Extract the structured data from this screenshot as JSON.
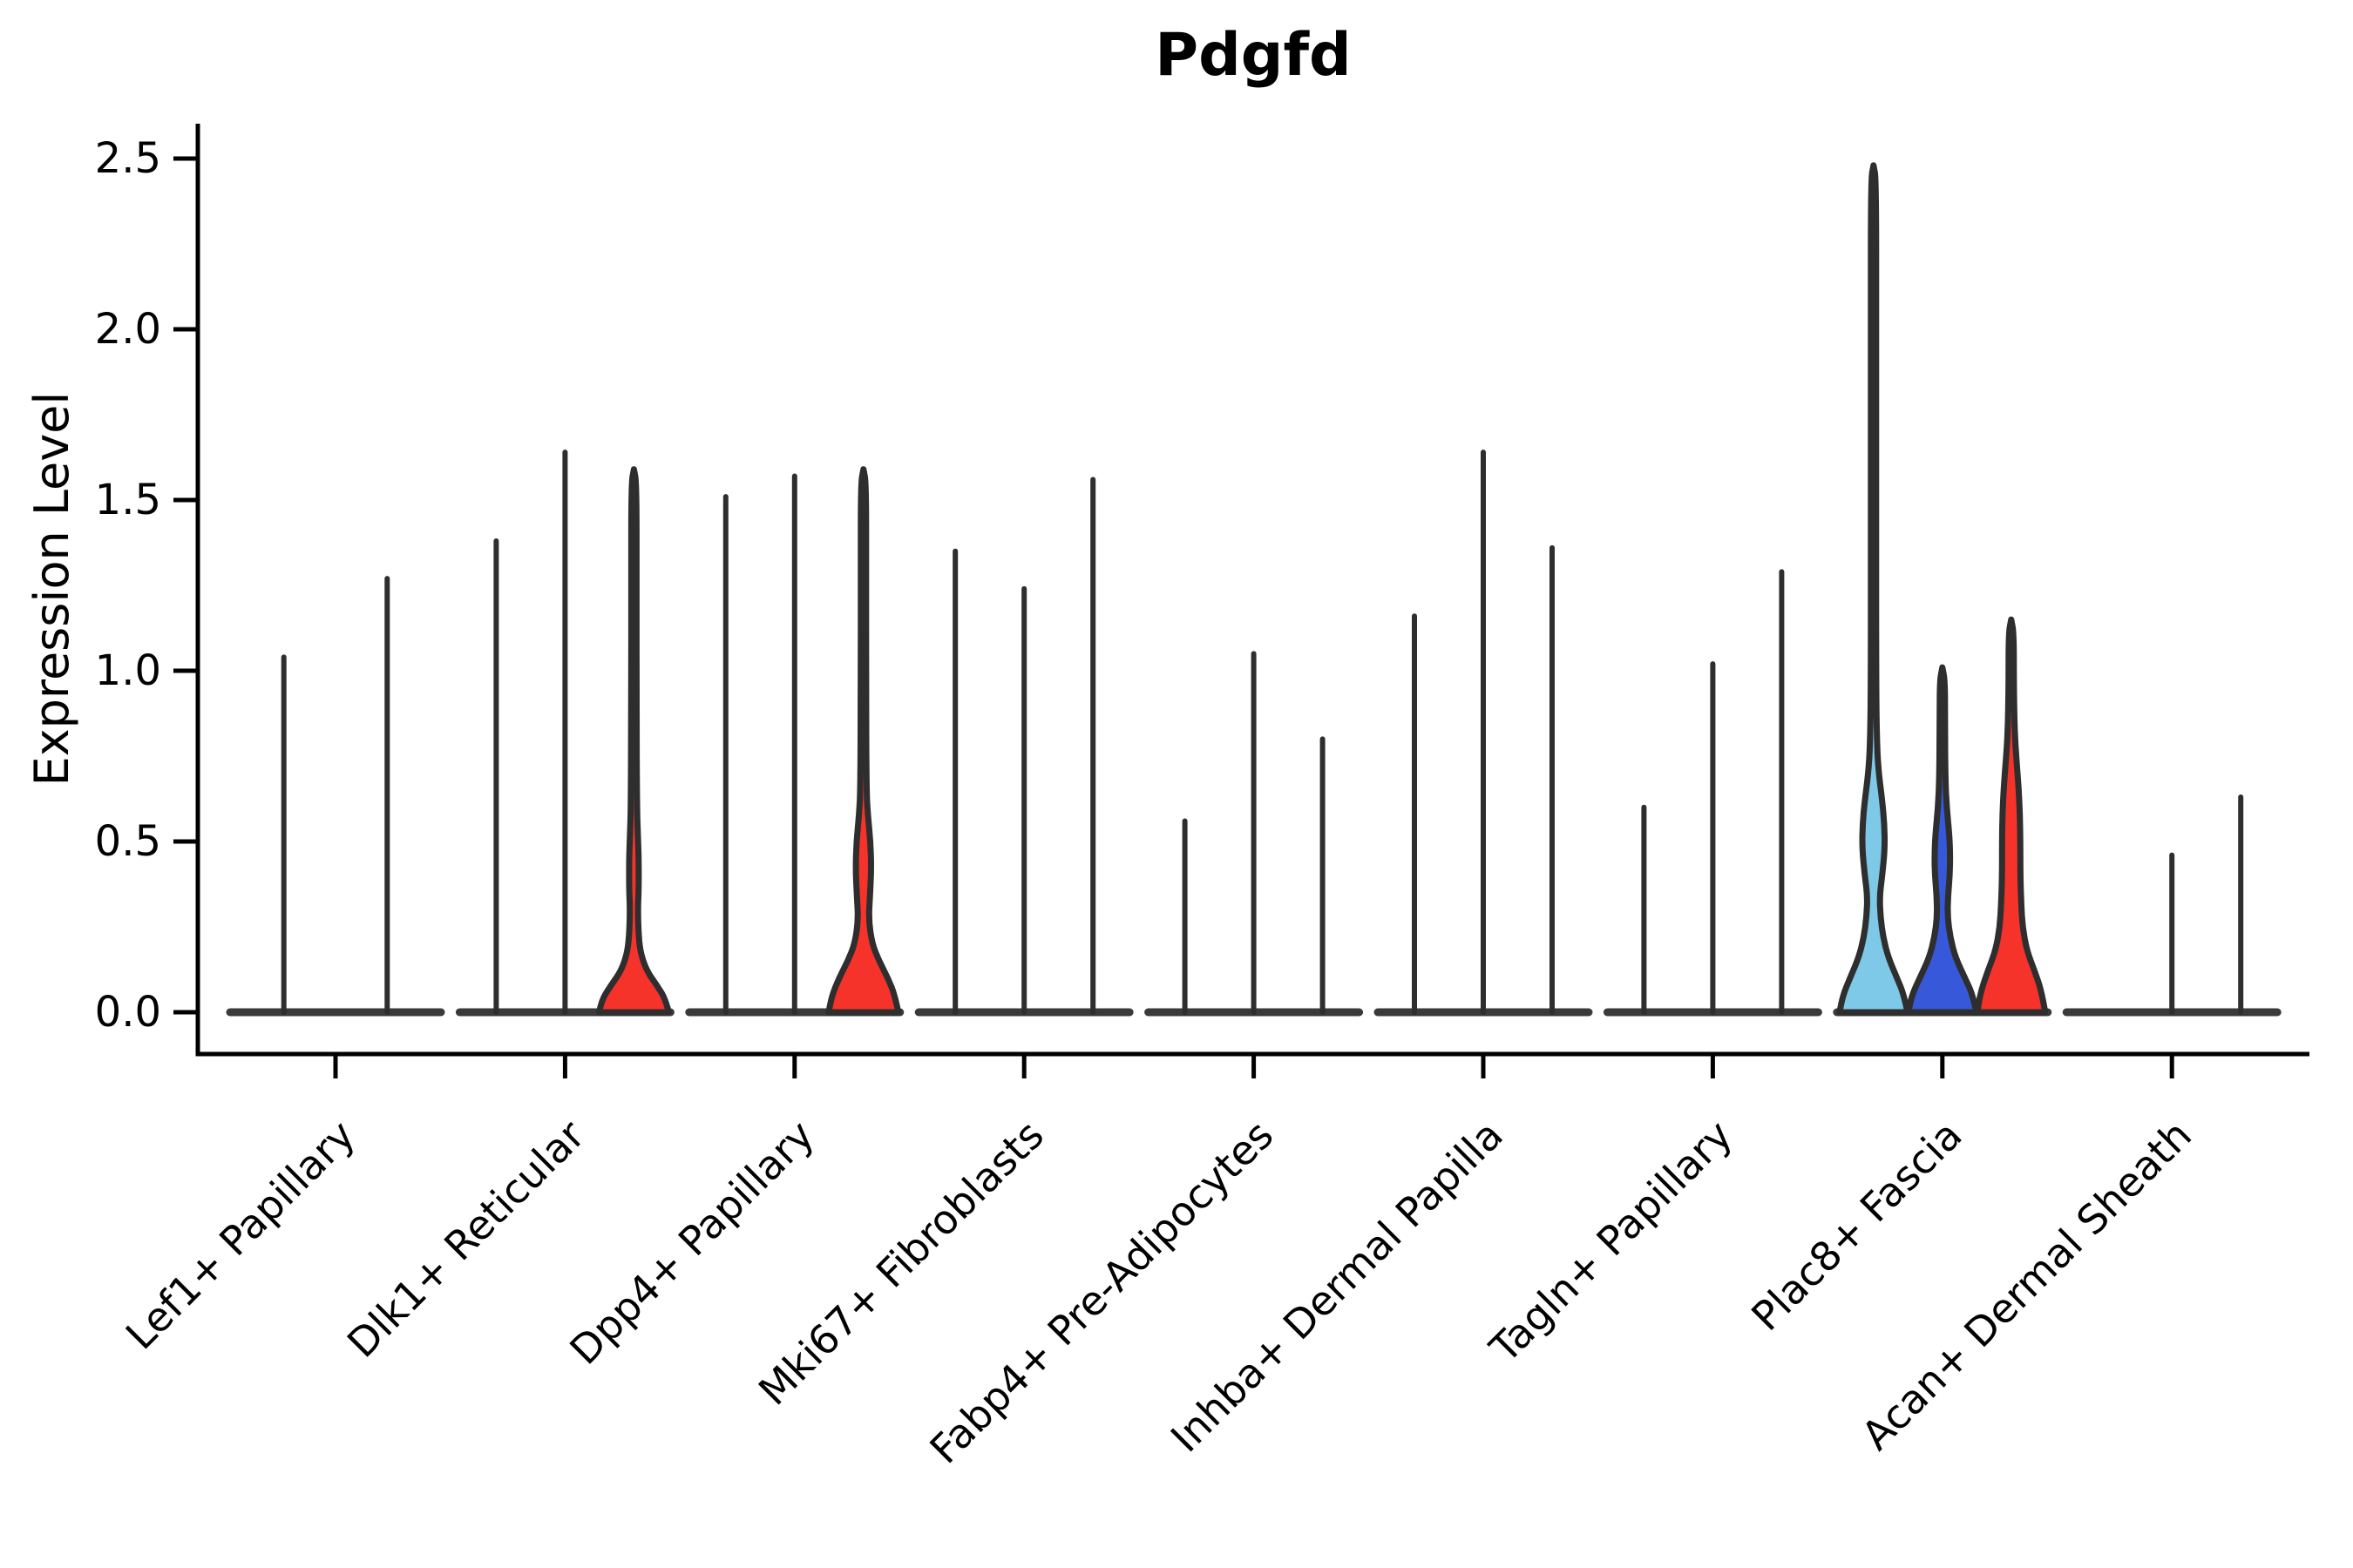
{
  "title": "Pdgfd",
  "y_axis": {
    "label": "Expression Level",
    "ticks": [
      0.0,
      0.5,
      1.0,
      1.5,
      2.0,
      2.5
    ]
  },
  "colors": {
    "violin_outline": "#2e2e2e",
    "baseline": "#3a3a3a",
    "axis": "#000000",
    "skyblue_fill": "#7ec8e8",
    "blue_fill": "#3758d8",
    "red_fill": "#f5332b"
  },
  "chart_data": {
    "type": "violin",
    "title": "Pdgfd",
    "xlabel": "",
    "ylabel": "Expression Level",
    "ylim": [
      -0.12,
      2.6
    ],
    "yticks": [
      0.0,
      0.5,
      1.0,
      1.5,
      2.0,
      2.5
    ],
    "grid": false,
    "legend": "none",
    "categories": [
      "Lef1+ Papillary",
      "Dlk1+ Reticular",
      "Dpp4+ Papillary",
      "Mki67+ Fibroblasts",
      "Fabp4+ Pre-Adipocytes",
      "Inhba+ Dermal Papilla",
      "Tagln+ Papillary",
      "Plac8+ Fascia",
      "Acan+ Dermal Sheath"
    ],
    "groups": [
      {
        "label": "Lef1+ Papillary",
        "violins": [
          {
            "split": 1,
            "max": 1.04,
            "style": "thin"
          },
          {
            "split": 2,
            "max": 1.27,
            "style": "thin"
          }
        ]
      },
      {
        "label": "Dlk1+ Reticular",
        "violins": [
          {
            "split": 1,
            "max": 1.38,
            "style": "thin"
          },
          {
            "split": 2,
            "max": 1.64,
            "style": "thin"
          },
          {
            "split": 3,
            "max": 1.59,
            "style": "body",
            "fill": "#f5332b",
            "profile": [
              [
                0,
                40
              ],
              [
                0.04,
                36
              ],
              [
                0.08,
                26
              ],
              [
                0.12,
                15
              ],
              [
                0.17,
                8
              ],
              [
                0.22,
                5.5
              ],
              [
                0.3,
                4.5
              ],
              [
                0.36,
                5.5
              ],
              [
                0.45,
                5.5
              ],
              [
                0.52,
                4.5
              ],
              [
                0.6,
                3.5
              ],
              [
                0.9,
                3
              ],
              [
                1.25,
                3
              ],
              [
                1.55,
                3
              ],
              [
                1.59,
                0
              ]
            ]
          }
        ]
      },
      {
        "label": "Dpp4+ Papillary",
        "violins": [
          {
            "split": 1,
            "max": 1.51,
            "style": "thin"
          },
          {
            "split": 2,
            "max": 1.57,
            "style": "thin"
          },
          {
            "split": 3,
            "max": 1.59,
            "style": "body",
            "fill": "#f5332b",
            "profile": [
              [
                0,
                40
              ],
              [
                0.05,
                36
              ],
              [
                0.1,
                28
              ],
              [
                0.15,
                18
              ],
              [
                0.2,
                10
              ],
              [
                0.27,
                6
              ],
              [
                0.34,
                7.5
              ],
              [
                0.42,
                9
              ],
              [
                0.5,
                8
              ],
              [
                0.58,
                5
              ],
              [
                0.65,
                3.5
              ],
              [
                0.95,
                3
              ],
              [
                1.3,
                3
              ],
              [
                1.55,
                3
              ],
              [
                1.59,
                0
              ]
            ]
          }
        ]
      },
      {
        "label": "Mki67+ Fibroblasts",
        "violins": [
          {
            "split": 1,
            "max": 1.35,
            "style": "thin"
          },
          {
            "split": 2,
            "max": 1.24,
            "style": "thin"
          },
          {
            "split": 3,
            "max": 1.56,
            "style": "thin"
          }
        ]
      },
      {
        "label": "Fabp4+ Pre-Adipocytes",
        "violins": [
          {
            "split": 1,
            "max": 0.56,
            "style": "thin"
          },
          {
            "split": 2,
            "max": 1.05,
            "style": "thin"
          },
          {
            "split": 3,
            "max": 0.8,
            "style": "thin"
          }
        ]
      },
      {
        "label": "Inhba+ Dermal Papilla",
        "violins": [
          {
            "split": 1,
            "max": 1.16,
            "style": "thin"
          },
          {
            "split": 2,
            "max": 1.64,
            "style": "thin"
          },
          {
            "split": 3,
            "max": 1.36,
            "style": "thin"
          }
        ]
      },
      {
        "label": "Tagln+ Papillary",
        "violins": [
          {
            "split": 1,
            "max": 0.6,
            "style": "thin"
          },
          {
            "split": 2,
            "max": 1.02,
            "style": "thin"
          },
          {
            "split": 3,
            "max": 1.29,
            "style": "thin"
          }
        ]
      },
      {
        "label": "Plac8+ Fascia",
        "violins": [
          {
            "split": 1,
            "max": 2.48,
            "style": "body",
            "fill": "#7ec8e8",
            "profile": [
              [
                0,
                39
              ],
              [
                0.05,
                35
              ],
              [
                0.1,
                27
              ],
              [
                0.16,
                17
              ],
              [
                0.22,
                11
              ],
              [
                0.28,
                8
              ],
              [
                0.34,
                7
              ],
              [
                0.4,
                10
              ],
              [
                0.48,
                13
              ],
              [
                0.55,
                12.5
              ],
              [
                0.62,
                10
              ],
              [
                0.7,
                6
              ],
              [
                0.78,
                4
              ],
              [
                0.95,
                3
              ],
              [
                1.5,
                3
              ],
              [
                2.0,
                3
              ],
              [
                2.44,
                3
              ],
              [
                2.48,
                0
              ]
            ]
          },
          {
            "split": 2,
            "max": 1.01,
            "style": "body",
            "fill": "#3758d8",
            "profile": [
              [
                0,
                39
              ],
              [
                0.05,
                35
              ],
              [
                0.1,
                26
              ],
              [
                0.16,
                15
              ],
              [
                0.22,
                9
              ],
              [
                0.28,
                6
              ],
              [
                0.34,
                6.5
              ],
              [
                0.4,
                8.5
              ],
              [
                0.46,
                9
              ],
              [
                0.52,
                8
              ],
              [
                0.6,
                5
              ],
              [
                0.68,
                3.5
              ],
              [
                0.85,
                3
              ],
              [
                0.97,
                3
              ],
              [
                1.01,
                0
              ]
            ]
          },
          {
            "split": 3,
            "max": 1.15,
            "style": "body",
            "fill": "#f5332b",
            "profile": [
              [
                0,
                39
              ],
              [
                0.06,
                35
              ],
              [
                0.12,
                27
              ],
              [
                0.18,
                18
              ],
              [
                0.25,
                13
              ],
              [
                0.32,
                11.5
              ],
              [
                0.4,
                10.5
              ],
              [
                0.5,
                10.5
              ],
              [
                0.58,
                10
              ],
              [
                0.66,
                8.5
              ],
              [
                0.74,
                6
              ],
              [
                0.82,
                4
              ],
              [
                0.95,
                3
              ],
              [
                1.11,
                3
              ],
              [
                1.15,
                0
              ]
            ]
          }
        ]
      },
      {
        "label": "Acan+ Dermal Sheath",
        "violins": [
          {
            "split": 1,
            "max": 0.0,
            "style": "flat"
          },
          {
            "split": 2,
            "max": 0.46,
            "style": "thin"
          },
          {
            "split": 3,
            "max": 0.63,
            "style": "thin"
          }
        ]
      }
    ]
  }
}
